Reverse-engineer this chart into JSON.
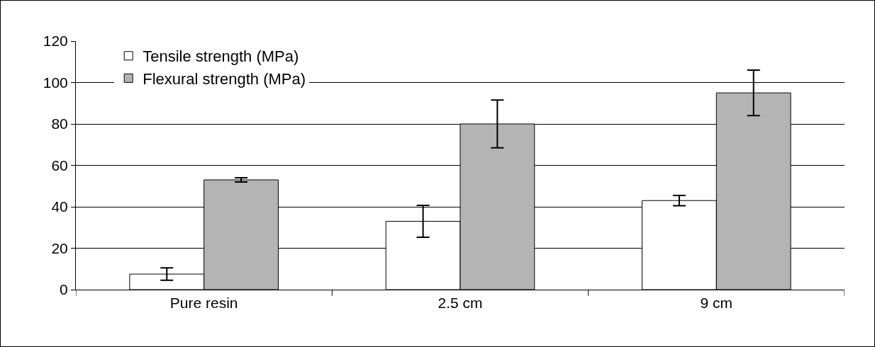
{
  "chart_data": {
    "type": "bar",
    "categories": [
      "Pure resin",
      "2.5 cm",
      "9 cm"
    ],
    "series": [
      {
        "name": "Tensile strength (MPa)",
        "color": "#ffffff",
        "values": [
          7.5,
          33,
          43
        ],
        "errors": [
          3,
          7.7,
          2.5
        ]
      },
      {
        "name": "Flexural strength (MPa)",
        "color": "#b4b4b4",
        "values": [
          53,
          80,
          95
        ],
        "errors": [
          1,
          11.5,
          11
        ]
      }
    ],
    "ylim": [
      0,
      120
    ],
    "yticks": [
      0,
      20,
      40,
      60,
      80,
      100,
      120
    ],
    "grid": "y",
    "legend": "top left"
  }
}
